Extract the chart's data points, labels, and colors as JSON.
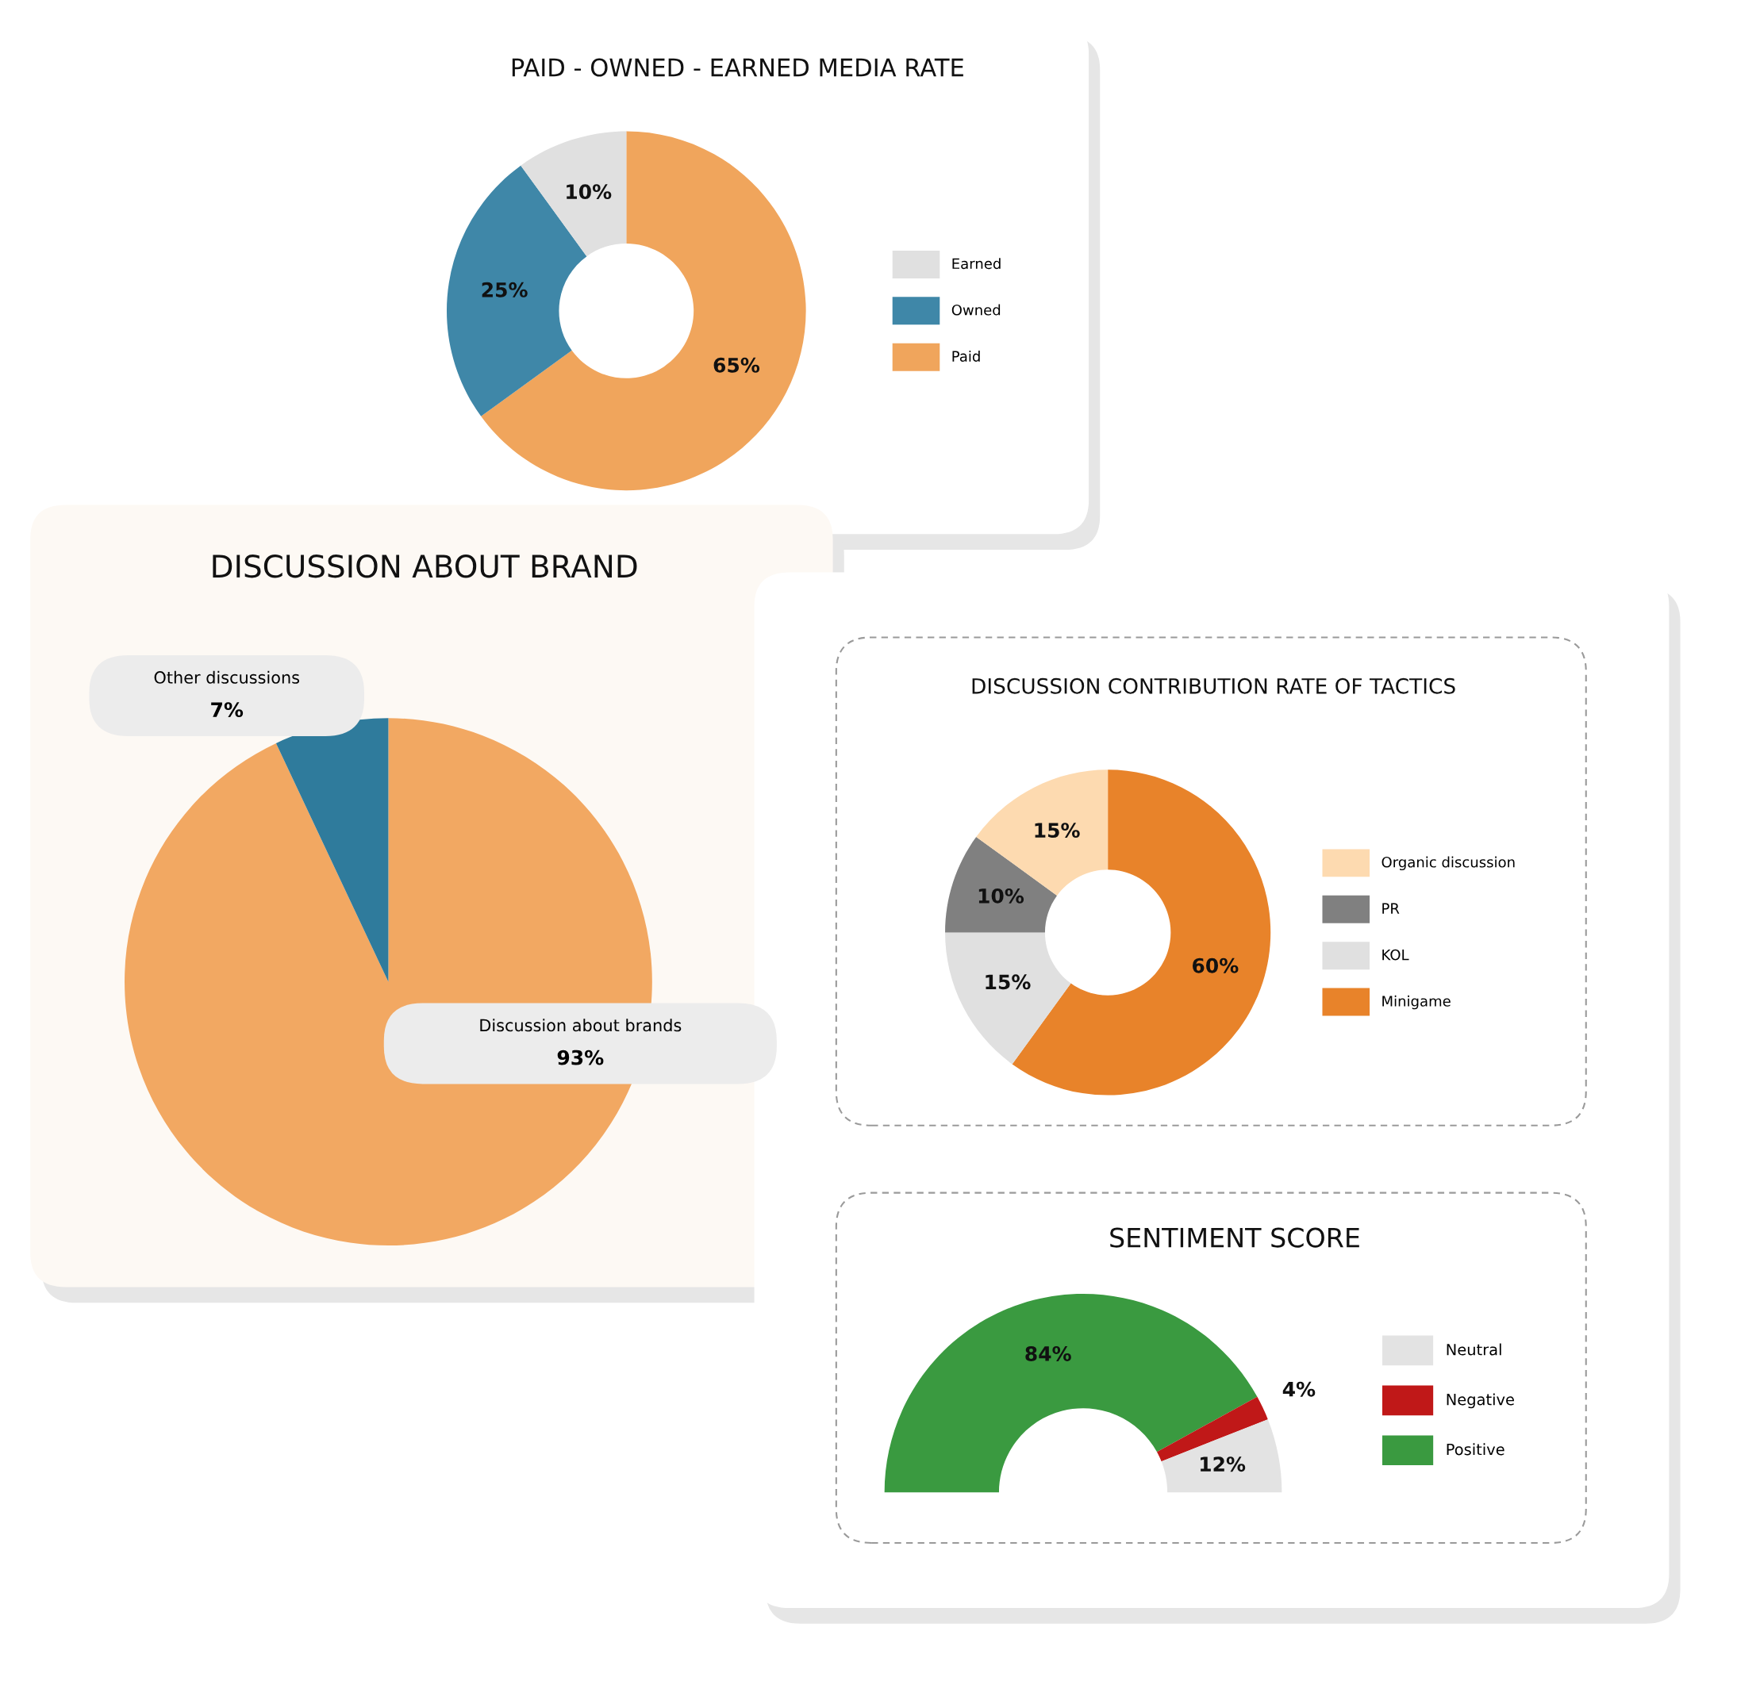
{
  "chart_data": [
    {
      "type": "donut",
      "title": "PAID - OWNED - EARNED MEDIA RATE",
      "categories": [
        "Earned",
        "Owned",
        "Paid"
      ],
      "values": [
        10,
        25,
        65
      ],
      "colors": [
        "#e0e0e0",
        "#3f87a8",
        "#f0a55c"
      ],
      "value_labels": [
        "10%",
        "25%",
        "65%"
      ],
      "legend": "right"
    },
    {
      "type": "pie",
      "title": "DISCUSSION ABOUT BRAND",
      "categories": [
        "Other discussions",
        "Discussion about brands"
      ],
      "values": [
        7,
        93
      ],
      "colors": [
        "#2f7b9c",
        "#f2a862"
      ],
      "value_labels": [
        "7%",
        "93%"
      ]
    },
    {
      "type": "donut",
      "title": "DISCUSSION CONTRIBUTION RATE OF TACTICS",
      "categories": [
        "Organic discussion",
        "PR",
        "KOL",
        "Minigame"
      ],
      "values": [
        15,
        10,
        15,
        60
      ],
      "colors": [
        "#fddab0",
        "#808080",
        "#e0e0e0",
        "#e8832a"
      ],
      "value_labels": [
        "15%",
        "10%",
        "15%",
        "60%"
      ],
      "legend": "right"
    },
    {
      "type": "donut",
      "title": "SENTIMENT SCORE",
      "categories": [
        "Neutral",
        "Negative",
        "Positive"
      ],
      "values": [
        12,
        4,
        84
      ],
      "colors": [
        "#e3e3e3",
        "#c01818",
        "#3a9a40"
      ],
      "value_labels": [
        "12%",
        "4%",
        "84%"
      ],
      "legend": "right"
    }
  ]
}
